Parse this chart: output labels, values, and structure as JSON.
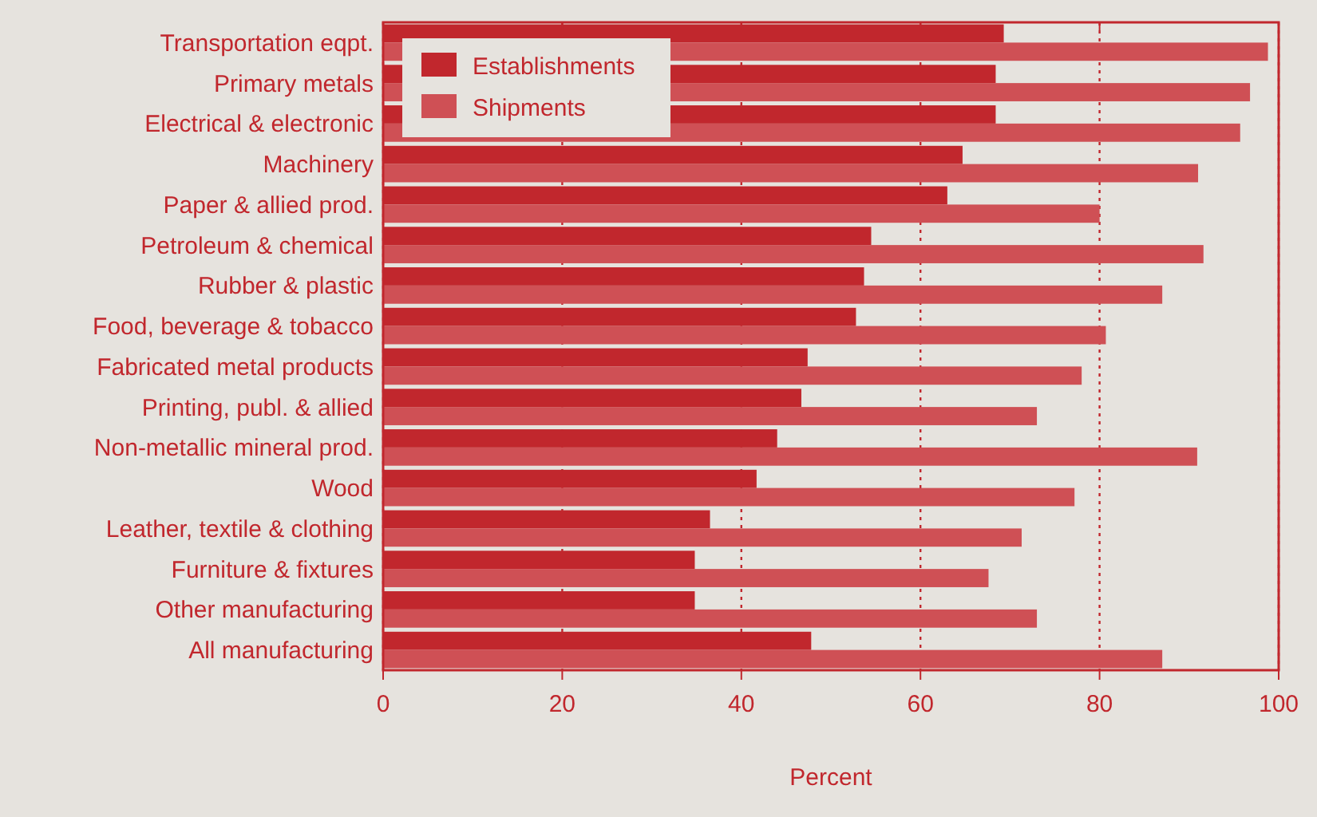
{
  "chart_data": {
    "type": "bar",
    "orientation": "horizontal",
    "xlabel": "Percent",
    "categories": [
      "Transportation eqpt.",
      "Primary metals",
      "Electrical & electronic",
      "Machinery",
      "Paper & allied prod.",
      "Petroleum & chemical",
      "Rubber & plastic",
      "Food, beverage & tobacco",
      "Fabricated metal products",
      "Printing, publ. & allied",
      "Non-metallic mineral prod.",
      "Wood",
      "Leather, textile & clothing",
      "Furniture & fixtures",
      "Other manufacturing",
      "All manufacturing"
    ],
    "series": [
      {
        "name": "Establishments",
        "color": "#c1272d",
        "values": [
          69.3,
          68.4,
          68.4,
          64.7,
          63,
          54.5,
          53.7,
          52.8,
          47.4,
          46.7,
          44,
          41.7,
          36.5,
          34.8,
          34.8,
          47.8
        ]
      },
      {
        "name": "Shipments",
        "color": "#cf5055",
        "values": [
          98.8,
          96.8,
          95.7,
          91,
          80,
          91.6,
          87,
          80.7,
          78,
          73,
          90.9,
          77.2,
          71.3,
          67.6,
          73,
          87
        ]
      }
    ],
    "xlim": [
      0,
      100
    ],
    "xticks": [
      0,
      20,
      40,
      60,
      80,
      100
    ],
    "grid": "x",
    "legend": "top left"
  }
}
